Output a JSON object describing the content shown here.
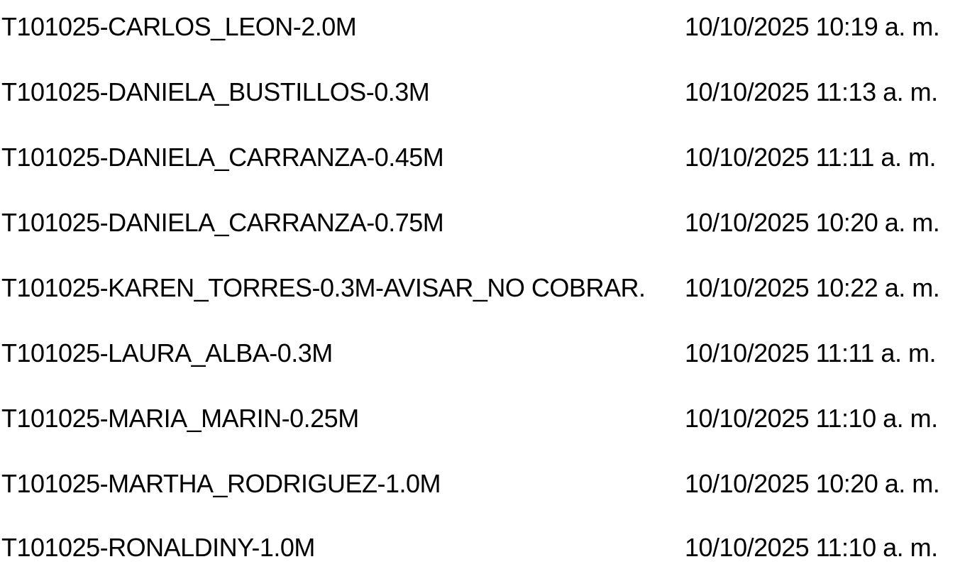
{
  "files": [
    {
      "name": "T101025-CARLOS_LEON-2.0M",
      "modified": "10/10/2025 10:19 a. m."
    },
    {
      "name": "T101025-DANIELA_BUSTILLOS-0.3M",
      "modified": "10/10/2025 11:13 a. m."
    },
    {
      "name": "T101025-DANIELA_CARRANZA-0.45M",
      "modified": "10/10/2025 11:11 a. m."
    },
    {
      "name": "T101025-DANIELA_CARRANZA-0.75M",
      "modified": "10/10/2025 10:20 a. m."
    },
    {
      "name": "T101025-KAREN_TORRES-0.3M-AVISAR_NO COBRAR.",
      "modified": "10/10/2025 10:22 a. m."
    },
    {
      "name": "T101025-LAURA_ALBA-0.3M",
      "modified": "10/10/2025 11:11 a. m."
    },
    {
      "name": "T101025-MARIA_MARIN-0.25M",
      "modified": "10/10/2025 11:10 a. m."
    },
    {
      "name": "T101025-MARTHA_RODRIGUEZ-1.0M",
      "modified": "10/10/2025 10:20 a. m."
    },
    {
      "name": "T101025-RONALDINY-1.0M",
      "modified": "10/10/2025 11:10 a. m."
    }
  ]
}
